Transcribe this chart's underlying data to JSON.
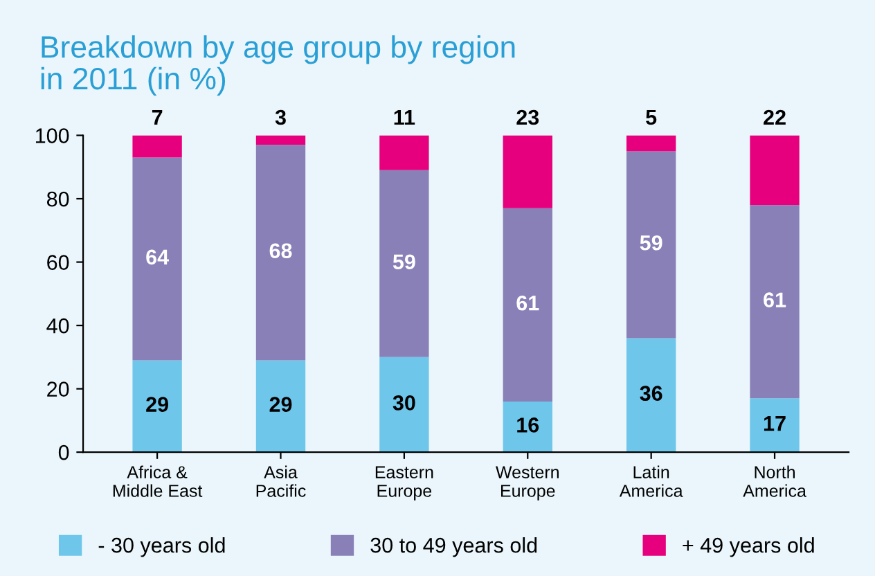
{
  "chart_data": {
    "type": "bar",
    "stacked": true,
    "title": "Breakdown by age group by region",
    "subtitle": "in 2011 (in %)",
    "categories": [
      "Africa &\nMiddle East",
      "Asia\nPacific",
      "Eastern\nEurope",
      "Western\nEurope",
      "Latin\nAmerica",
      "North\nAmerica"
    ],
    "series": [
      {
        "name": "- 30 years old",
        "color": "#6ec6ea",
        "values": [
          29,
          29,
          30,
          16,
          36,
          17
        ]
      },
      {
        "name": "30 to 49 years old",
        "color": "#8a80b8",
        "values": [
          64,
          68,
          59,
          61,
          59,
          61
        ]
      },
      {
        "name": "+ 49 years old",
        "color": "#e6007e",
        "values": [
          7,
          3,
          11,
          23,
          5,
          22
        ]
      }
    ],
    "ylim": [
      0,
      100
    ],
    "yticks": [
      0,
      20,
      40,
      60,
      80,
      100
    ],
    "grid": false,
    "legend": "bottom",
    "data_labels": true
  }
}
